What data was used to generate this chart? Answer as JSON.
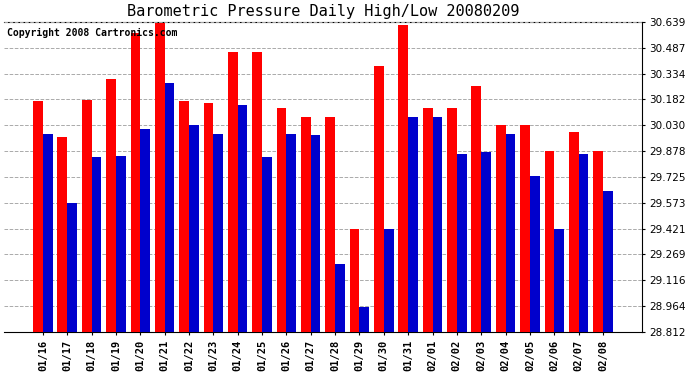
{
  "title": "Barometric Pressure Daily High/Low 20080209",
  "copyright": "Copyright 2008 Cartronics.com",
  "dates": [
    "01/16",
    "01/17",
    "01/18",
    "01/19",
    "01/20",
    "01/21",
    "01/22",
    "01/23",
    "01/24",
    "01/25",
    "01/26",
    "01/27",
    "01/28",
    "01/29",
    "01/30",
    "01/31",
    "02/01",
    "02/02",
    "02/03",
    "02/04",
    "02/05",
    "02/06",
    "02/07",
    "02/08"
  ],
  "highs": [
    30.17,
    29.96,
    30.18,
    30.3,
    30.57,
    30.63,
    30.17,
    30.16,
    30.46,
    30.46,
    30.13,
    30.08,
    30.08,
    29.42,
    30.38,
    30.62,
    30.13,
    30.13,
    30.26,
    30.03,
    30.03,
    29.88,
    29.99,
    29.88
  ],
  "lows": [
    29.98,
    29.57,
    29.84,
    29.85,
    30.01,
    30.28,
    30.03,
    29.98,
    30.15,
    29.84,
    29.98,
    29.97,
    29.21,
    28.96,
    29.42,
    30.08,
    30.08,
    29.86,
    29.87,
    29.98,
    29.73,
    29.42,
    29.86,
    29.64
  ],
  "high_color": "#ff0000",
  "low_color": "#0000cc",
  "bg_color": "#ffffff",
  "grid_color": "#aaaaaa",
  "ymin": 28.812,
  "ymax": 30.639,
  "yticks": [
    28.812,
    28.964,
    29.116,
    29.269,
    29.421,
    29.573,
    29.725,
    29.878,
    30.03,
    30.182,
    30.334,
    30.487,
    30.639
  ],
  "title_fontsize": 11,
  "copyright_fontsize": 7,
  "bar_width": 0.4
}
